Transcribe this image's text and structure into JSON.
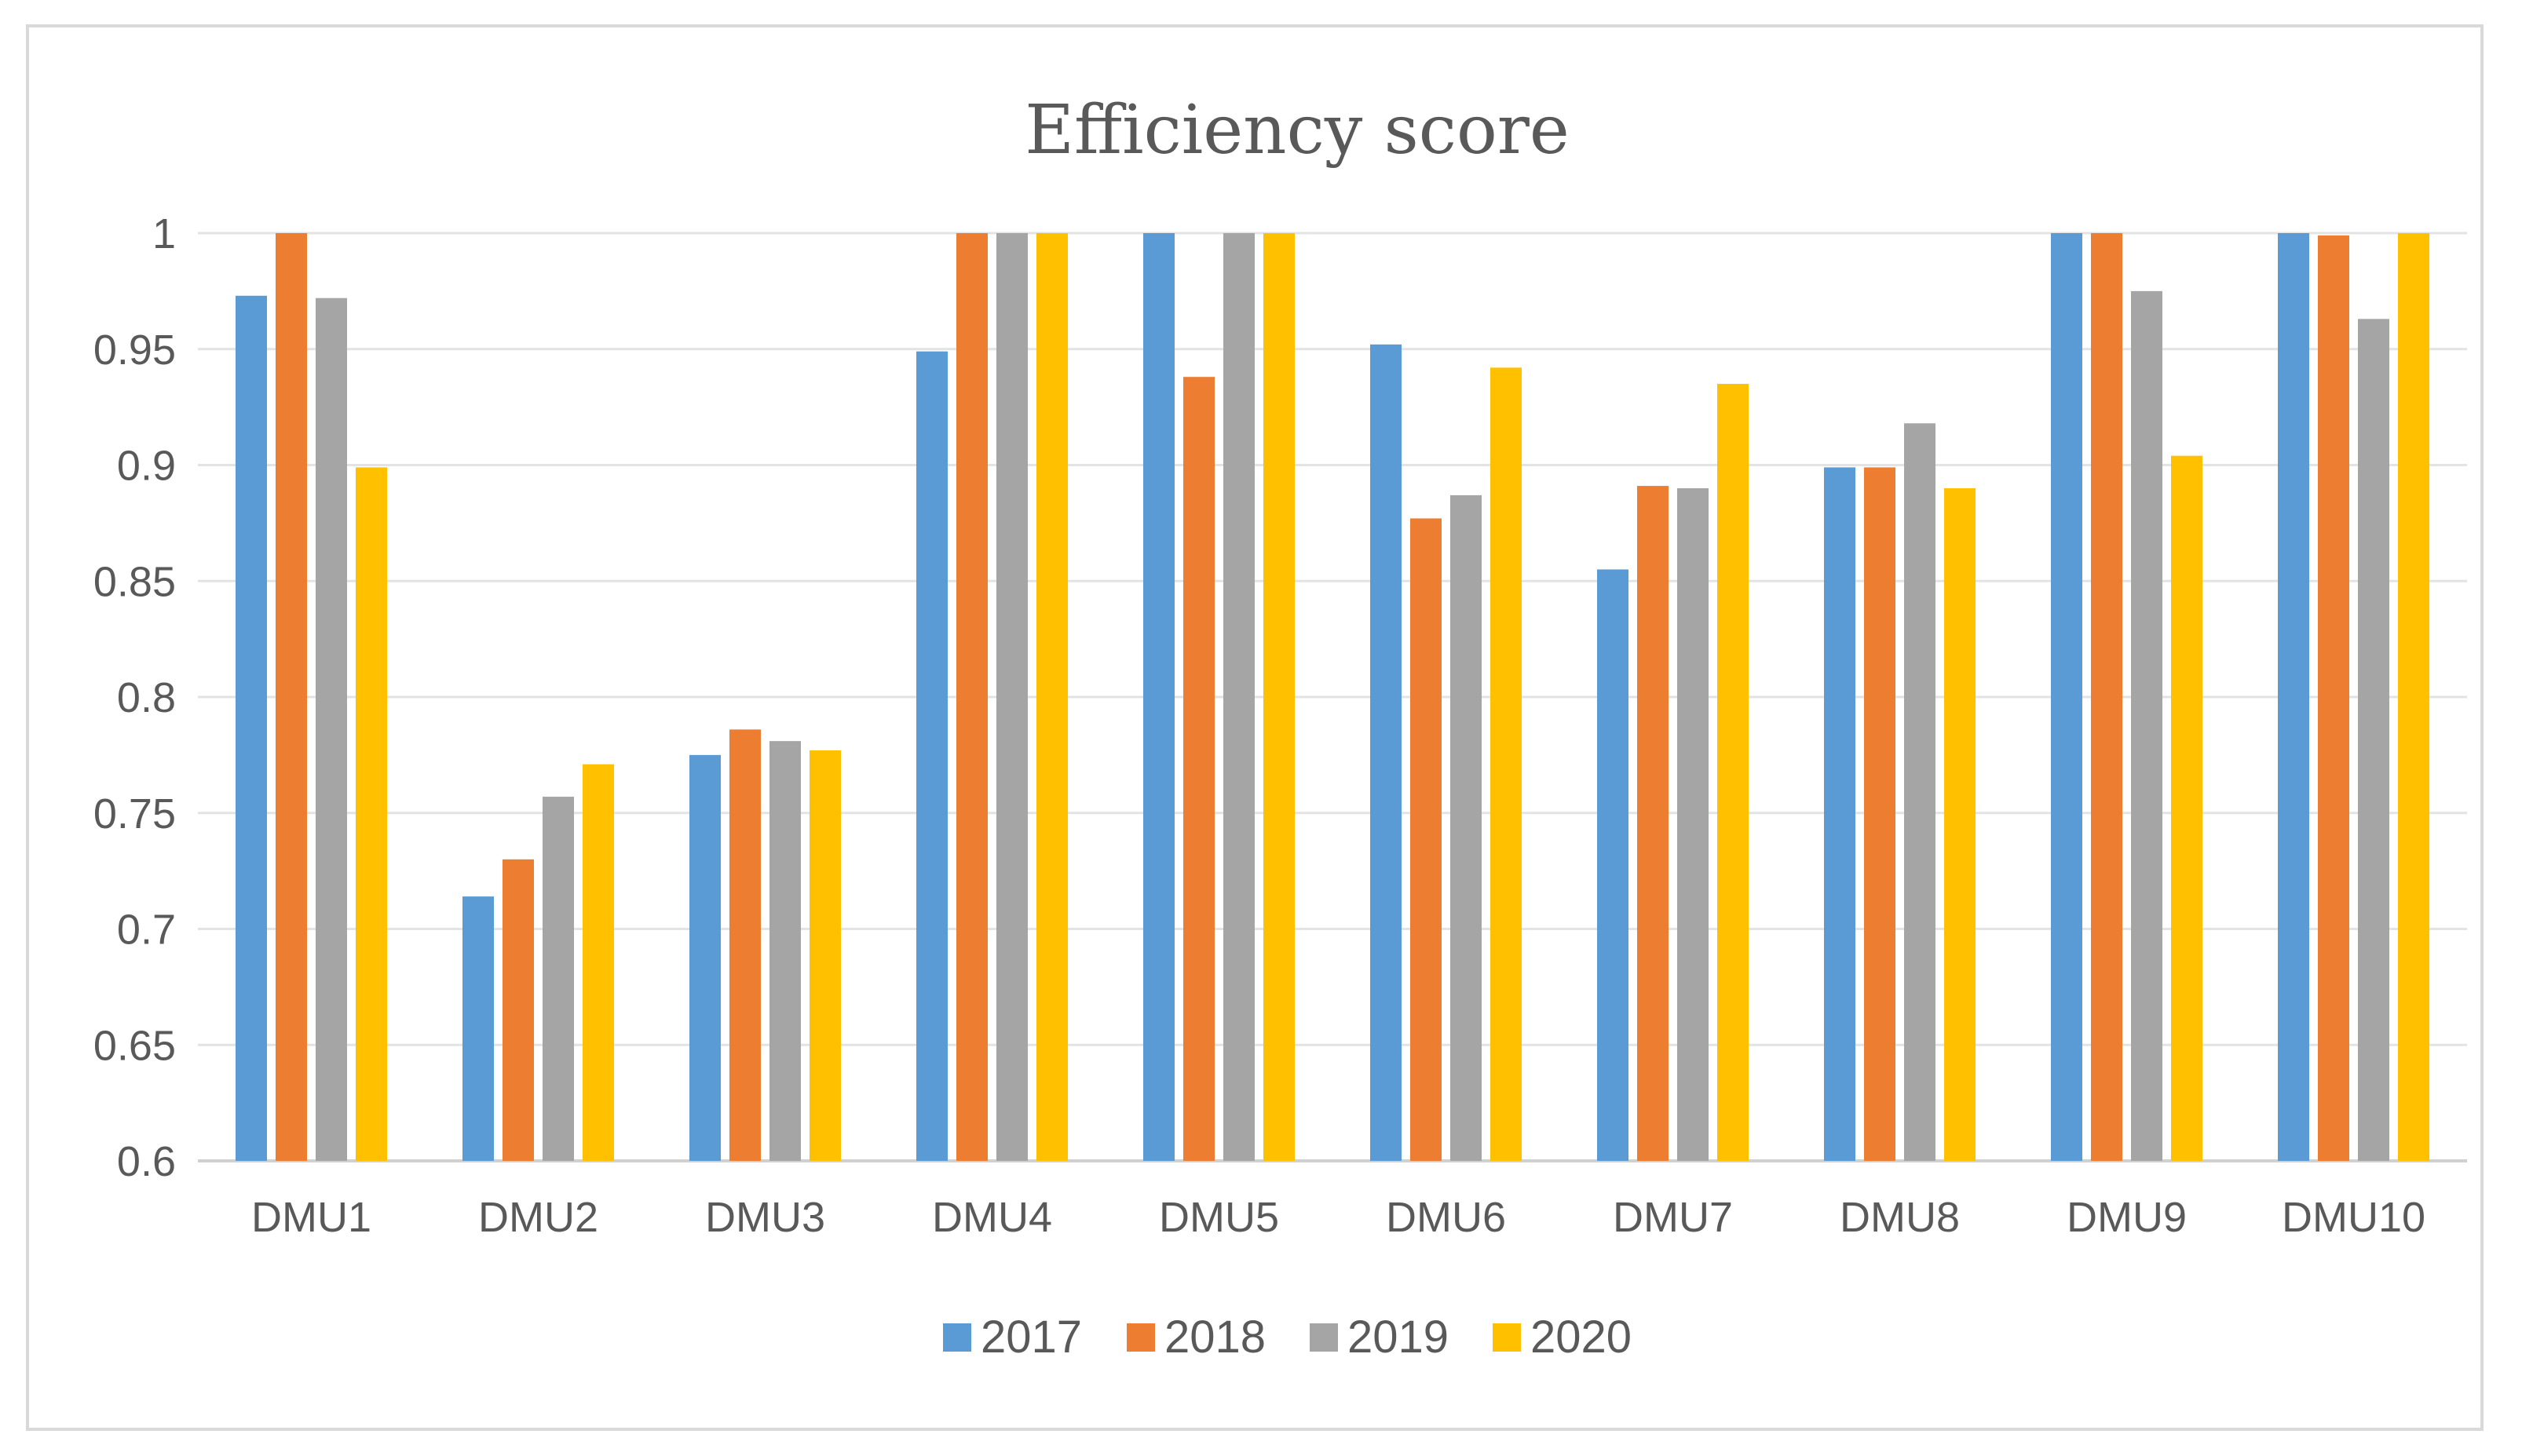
{
  "chart_data": {
    "type": "bar",
    "title": "Efficiency score",
    "xlabel": "",
    "ylabel": "",
    "ylim": [
      0.6,
      1
    ],
    "yticks": [
      0.6,
      0.65,
      0.7,
      0.75,
      0.8,
      0.85,
      0.9,
      0.95,
      1
    ],
    "ytick_labels": [
      "0.6",
      "0.65",
      "0.7",
      "0.75",
      "0.8",
      "0.85",
      "0.9",
      "0.95",
      "1"
    ],
    "grid": true,
    "legend_position": "bottom",
    "categories": [
      "DMU1",
      "DMU2",
      "DMU3",
      "DMU4",
      "DMU5",
      "DMU6",
      "DMU7",
      "DMU8",
      "DMU9",
      "DMU10"
    ],
    "series": [
      {
        "name": "2017",
        "color": "#5b9bd5",
        "values": [
          0.973,
          0.714,
          0.775,
          0.949,
          1.0,
          0.952,
          0.855,
          0.899,
          1.0,
          1.0
        ]
      },
      {
        "name": "2018",
        "color": "#ed7d31",
        "values": [
          1.0,
          0.73,
          0.786,
          1.0,
          0.938,
          0.877,
          0.891,
          0.899,
          1.0,
          0.999
        ]
      },
      {
        "name": "2019",
        "color": "#a5a5a5",
        "values": [
          0.972,
          0.757,
          0.781,
          1.0,
          1.0,
          0.887,
          0.89,
          0.918,
          0.975,
          0.963
        ]
      },
      {
        "name": "2020",
        "color": "#ffc000",
        "values": [
          0.899,
          0.771,
          0.777,
          1.0,
          1.0,
          0.942,
          0.935,
          0.89,
          0.904,
          1.0
        ]
      }
    ]
  }
}
